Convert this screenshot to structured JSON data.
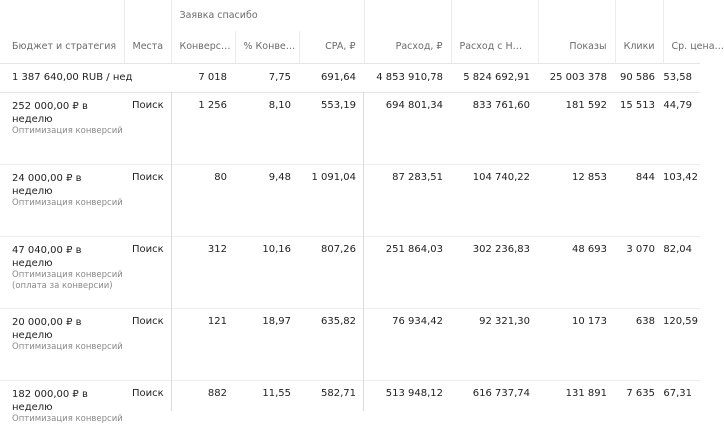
{
  "group_header": {
    "label": "Заявка спасибо"
  },
  "columns": [
    {
      "key": "budget",
      "label": "Бюджет и стратегия"
    },
    {
      "key": "places",
      "label": "Места"
    },
    {
      "key": "conversions",
      "label": "Конверс…"
    },
    {
      "key": "conv_rate",
      "label": "% Конве…"
    },
    {
      "key": "cpa",
      "label": "CPA, ₽"
    },
    {
      "key": "spend",
      "label": "Расход, ₽"
    },
    {
      "key": "spend_vat",
      "label": "Расход с Н…"
    },
    {
      "key": "impressions",
      "label": "Показы"
    },
    {
      "key": "clicks",
      "label": "Клики"
    },
    {
      "key": "avg",
      "label": "Ср. цена…"
    }
  ],
  "summary": {
    "budget": "1 387 640,00 RUB / нед",
    "places": "",
    "conversions": "7 018",
    "conv_rate": "7,75",
    "cpa": "691,64",
    "spend": "4 853 910,78",
    "spend_vat": "5 824 692,91",
    "impressions": "25 003 378",
    "clicks": "90 586",
    "avg": "53,58"
  },
  "rows": [
    {
      "budget": "252 000,00 ₽ в неделю",
      "strategy": "Оптимизация конверсий",
      "places": "Поиск",
      "conversions": "1 256",
      "conv_rate": "8,10",
      "cpa": "553,19",
      "spend": "694 801,34",
      "spend_vat": "833 761,60",
      "impressions": "181 592",
      "clicks": "15 513",
      "avg": "44,79"
    },
    {
      "budget": "24 000,00 ₽ в неделю",
      "strategy": "Оптимизация конверсий",
      "places": "Поиск",
      "conversions": "80",
      "conv_rate": "9,48",
      "cpa": "1 091,04",
      "spend": "87 283,51",
      "spend_vat": "104 740,22",
      "impressions": "12 853",
      "clicks": "844",
      "avg": "103,42"
    },
    {
      "budget": "47 040,00 ₽ в неделю",
      "strategy": "Оптимизация конверсий (оплата за конверсии)",
      "places": "Поиск",
      "conversions": "312",
      "conv_rate": "10,16",
      "cpa": "807,26",
      "spend": "251 864,03",
      "spend_vat": "302 236,83",
      "impressions": "48 693",
      "clicks": "3 070",
      "avg": "82,04"
    },
    {
      "budget": "20 000,00 ₽ в неделю",
      "strategy": "Оптимизация конверсий",
      "places": "Поиск",
      "conversions": "121",
      "conv_rate": "18,97",
      "cpa": "635,82",
      "spend": "76 934,42",
      "spend_vat": "92 321,30",
      "impressions": "10 173",
      "clicks": "638",
      "avg": "120,59"
    },
    {
      "budget": "182 000,00 ₽ в неделю",
      "strategy": "Оптимизация конверсий",
      "places": "Поиск",
      "conversions": "882",
      "conv_rate": "11,55",
      "cpa": "582,71",
      "spend": "513 948,12",
      "spend_vat": "616 737,74",
      "impressions": "131 891",
      "clicks": "7 635",
      "avg": "67,31"
    }
  ]
}
